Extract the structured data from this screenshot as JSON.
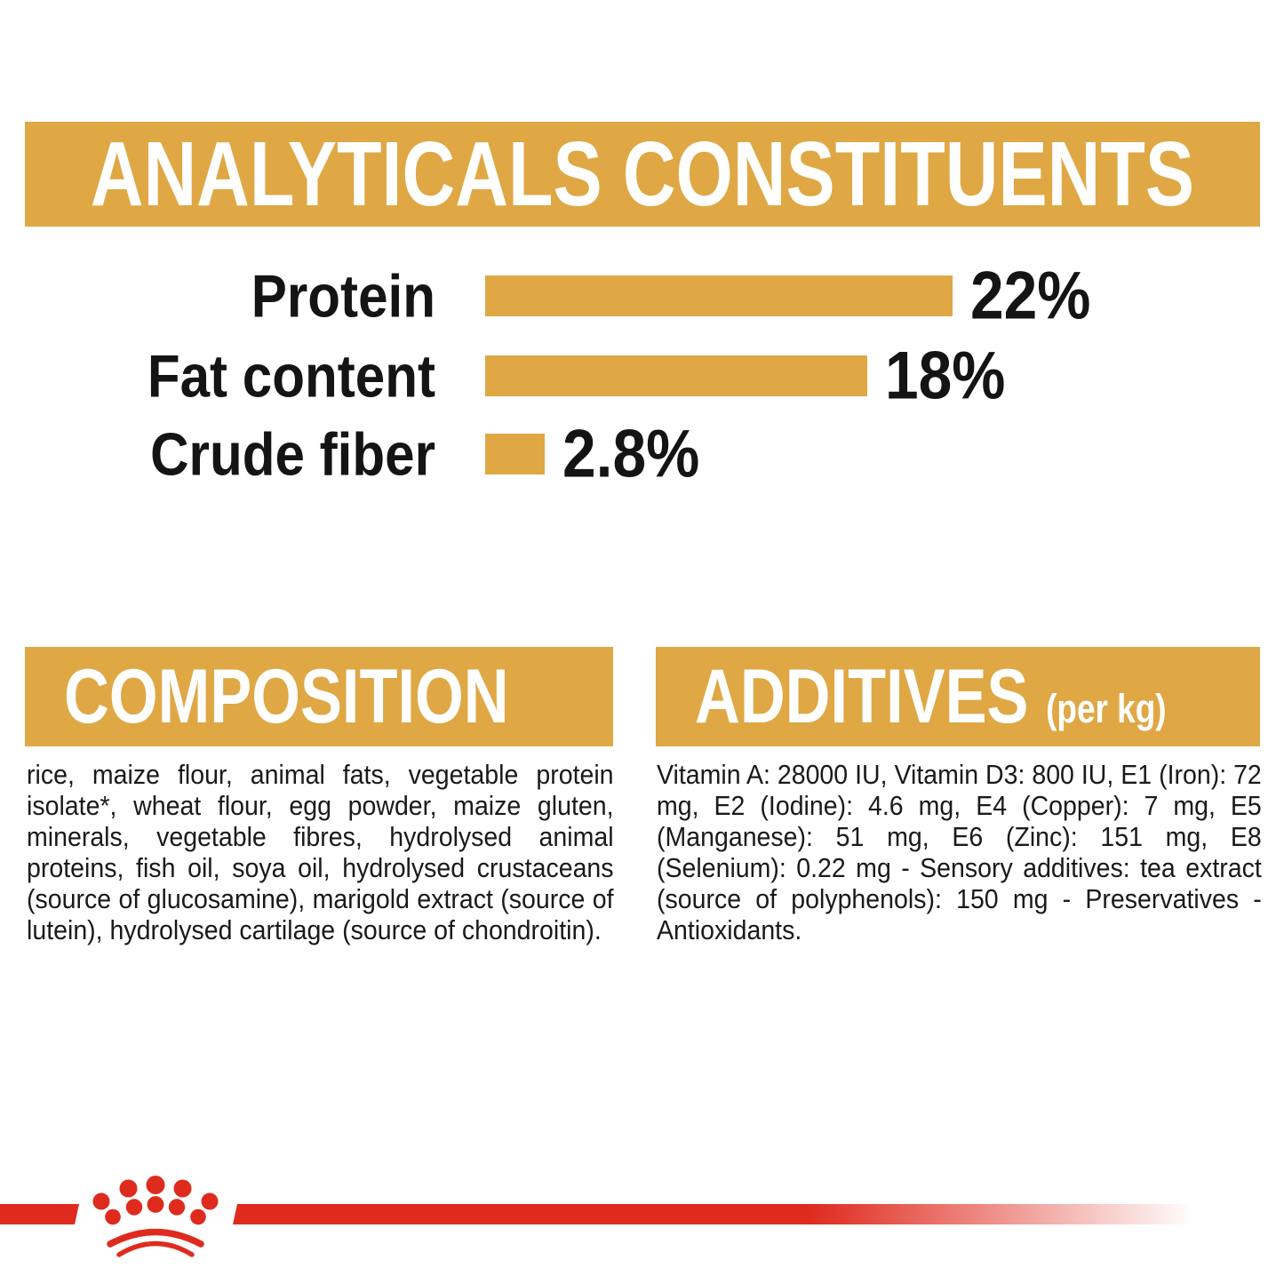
{
  "colors": {
    "gold": "#DFA845",
    "red": "#DF2B1E",
    "text": "#141414",
    "banner_text": "#FFFFFF",
    "background": "#FFFFFF"
  },
  "header": {
    "title": "ANALYTICALS CONSTITUENTS"
  },
  "chart_data": {
    "type": "bar",
    "orientation": "horizontal",
    "title": "ANALYTICALS CONSTITUENTS",
    "categories": [
      "Protein",
      "Fat content",
      "Crude fiber"
    ],
    "values": [
      22,
      18,
      2.8
    ],
    "value_labels": [
      "22%",
      "18%",
      "2.8%"
    ],
    "unit": "%",
    "xlim": [
      0,
      22
    ],
    "bar_color": "#DFA845",
    "grid": false,
    "legend": false
  },
  "composition": {
    "title": "COMPOSITION",
    "body": "rice, maize flour, animal fats, vegetable protein isolate*, wheat flour, egg powder, maize gluten, minerals, vegetable fibres, hydrolysed animal proteins, fish oil, soya oil, hydrolysed crustaceans (source of glucosamine), marigold extract (source of lutein), hydrolysed cartilage (source of chondroitin)."
  },
  "additives": {
    "title": "ADDITIVES",
    "title_suffix": "(per kg)",
    "body": "Vitamin A: 28000 IU, Vitamin D3: 800 IU, E1 (Iron): 72 mg, E2 (Iodine): 4.6 mg, E4 (Copper): 7 mg, E5 (Manganese): 51 mg, E6 (Zinc): 151 mg, E8 (Selenium): 0.22 mg - Sensory additives: tea extract (source of polyphenols): 150 mg - Preservatives - Antioxidants."
  },
  "footer": {
    "brand_icon": "royal-canin-crown"
  }
}
